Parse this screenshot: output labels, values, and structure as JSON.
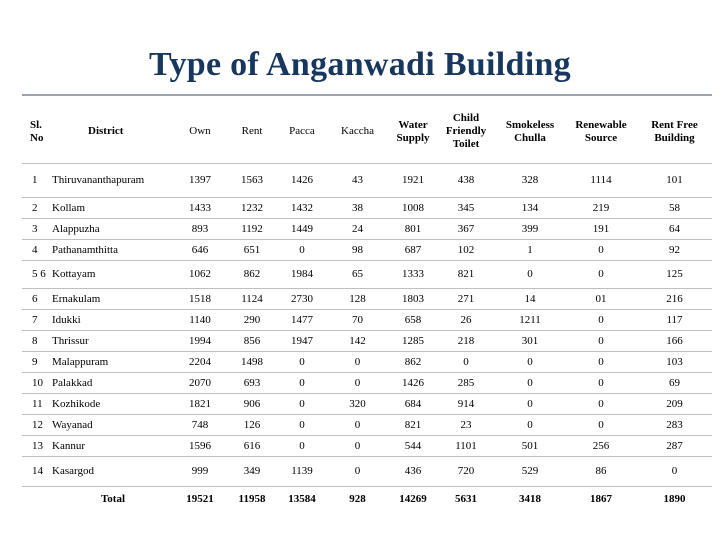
{
  "title": "Type of Anganwadi Building",
  "headers": [
    "Sl. No",
    "District",
    "Own",
    "Rent",
    "Pacca",
    "Kaccha",
    "Water Supply",
    "Child Friendly Toilet",
    "Smokeless Chulla",
    "Renewable Source",
    "Rent Free Building"
  ],
  "rows": [
    {
      "sl": "1",
      "district": "Thiruvananthapuram",
      "values": [
        "1397",
        "1563",
        "1426",
        "43",
        "1921",
        "438",
        "328",
        "1114",
        "101"
      ]
    },
    {
      "sl": "2",
      "district": "Kollam",
      "values": [
        "1433",
        "1232",
        "1432",
        "38",
        "1008",
        "345",
        "134",
        "219",
        "58"
      ]
    },
    {
      "sl": "3",
      "district": "Alappuzha",
      "values": [
        "893",
        "1192",
        "1449",
        "24",
        "801",
        "367",
        "399",
        "191",
        "64"
      ]
    },
    {
      "sl": "4",
      "district": "Pathanamthitta",
      "values": [
        "646",
        "651",
        "0",
        "98",
        "687",
        "102",
        "1",
        "0",
        "92"
      ]
    },
    {
      "sl": "5 6",
      "district": "Kottayam",
      "values": [
        "1062",
        "862",
        "1984",
        "65",
        "1333",
        "821",
        "0",
        "0",
        "125"
      ]
    },
    {
      "sl": "6",
      "district": "Ernakulam",
      "values": [
        "1518",
        "1124",
        "2730",
        "128",
        "1803",
        "271",
        "14",
        "01",
        "216"
      ]
    },
    {
      "sl": "7",
      "district": "Idukki",
      "values": [
        "1140",
        "290",
        "1477",
        "70",
        "658",
        "26",
        "1211",
        "0",
        "117"
      ]
    },
    {
      "sl": "8",
      "district": "Thrissur",
      "values": [
        "1994",
        "856",
        "1947",
        "142",
        "1285",
        "218",
        "301",
        "0",
        "166"
      ]
    },
    {
      "sl": "9",
      "district": "Malappuram",
      "values": [
        "2204",
        "1498",
        "0",
        "0",
        "862",
        "0",
        "0",
        "0",
        "103"
      ]
    },
    {
      "sl": "10",
      "district": "Palakkad",
      "values": [
        "2070",
        "693",
        "0",
        "0",
        "1426",
        "285",
        "0",
        "0",
        "69"
      ]
    },
    {
      "sl": "11",
      "district": "Kozhikode",
      "values": [
        "1821",
        "906",
        "0",
        "320",
        "684",
        "914",
        "0",
        "0",
        "209"
      ]
    },
    {
      "sl": "12",
      "district": "Wayanad",
      "values": [
        "748",
        "126",
        "0",
        "0",
        "821",
        "23",
        "0",
        "0",
        "283"
      ]
    },
    {
      "sl": "13",
      "district": "Kannur",
      "values": [
        "1596",
        "616",
        "0",
        "0",
        "544",
        "1101",
        "501",
        "256",
        "287"
      ]
    },
    {
      "sl": "14",
      "district": "Kasargod",
      "values": [
        "999",
        "349",
        "1139",
        "0",
        "436",
        "720",
        "529",
        "86",
        "0"
      ]
    }
  ],
  "total": {
    "label": "Total",
    "values": [
      "19521",
      "11958",
      "13584",
      "928",
      "14269",
      "5631",
      "3418",
      "1867",
      "1890"
    ]
  }
}
